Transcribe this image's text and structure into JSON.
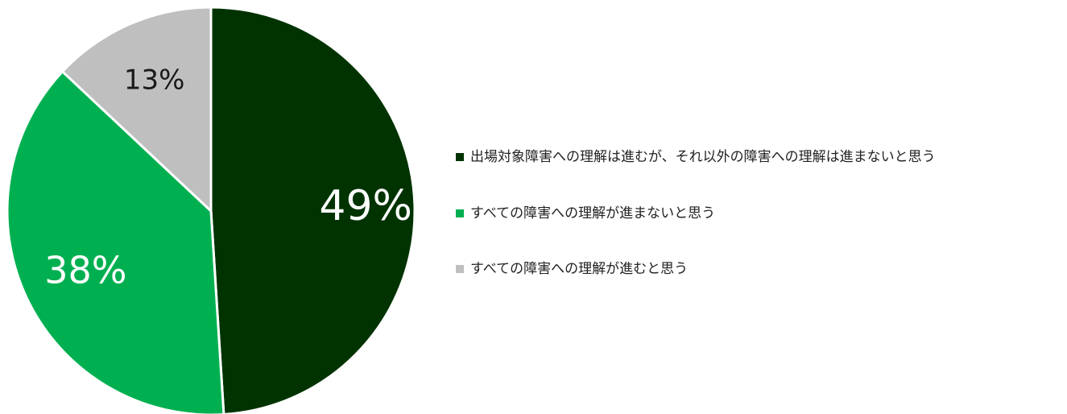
{
  "chart_data": {
    "type": "pie",
    "categories": [
      "出場対象障害への理解は進むが、それ以外の障害への理解は進まないと思う",
      "すべての障害への理解が進まないと思う",
      "すべての障害への理解が進むと思う"
    ],
    "values": [
      49,
      38,
      13
    ],
    "data_labels": [
      "49%",
      "38%",
      "13%"
    ],
    "colors": [
      "#003300",
      "#00b050",
      "#bfbfbf"
    ],
    "label_colors": [
      "#ffffff",
      "#ffffff",
      "#1a1a1a"
    ],
    "start_angle": "12 o'clock",
    "direction": "clockwise",
    "legend_position": "right"
  }
}
